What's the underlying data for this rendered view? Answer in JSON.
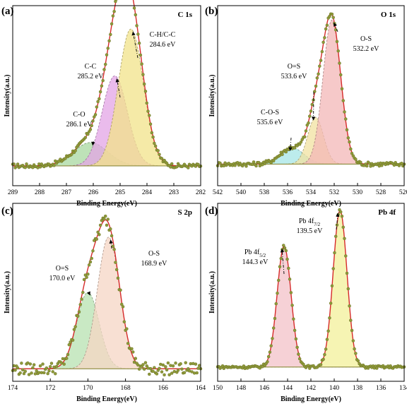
{
  "chart_data": [
    {
      "type": "line",
      "panel": "(a)",
      "title": "C 1s",
      "xlabel": "Binding Energy(eV)",
      "ylabel": "Intensity(a.u.)",
      "xlim": [
        289,
        282
      ],
      "xticks": [
        289,
        288,
        287,
        286,
        285,
        284,
        283,
        282
      ],
      "reversed_x": true,
      "background": 0.11,
      "noise": 0.012,
      "peaks": [
        {
          "name": "C-O",
          "energy": "286.1 eV",
          "center": 286.1,
          "height": 0.13,
          "fwhm": 1.5,
          "color": "#a8d8a0"
        },
        {
          "name": "C-C",
          "energy": "285.2 eV",
          "center": 285.2,
          "height": 0.5,
          "fwhm": 1.1,
          "color": "#e3a4e6"
        },
        {
          "name": "C-H/C-C",
          "energy": "284.6 eV",
          "center": 284.6,
          "height": 0.76,
          "fwhm": 1.1,
          "color": "#f2e38a"
        }
      ]
    },
    {
      "type": "line",
      "panel": "(b)",
      "title": "O 1s",
      "xlabel": "Binding Energy(eV)",
      "ylabel": "Intensity(a.u.)",
      "xlim": [
        542,
        526
      ],
      "xticks": [
        542,
        540,
        538,
        536,
        534,
        532,
        530,
        528,
        526
      ],
      "reversed_x": true,
      "background": 0.12,
      "noise": 0.012,
      "peaks": [
        {
          "name": "C-O-S",
          "energy": "535.6 eV",
          "center": 535.6,
          "height": 0.09,
          "fwhm": 2.4,
          "color": "#a6e6e6"
        },
        {
          "name": "O=S",
          "energy": "533.6 eV",
          "center": 533.6,
          "height": 0.26,
          "fwhm": 1.6,
          "color": "#f2e2a0"
        },
        {
          "name": "O-S",
          "energy": "532.2 eV",
          "center": 532.2,
          "height": 0.8,
          "fwhm": 1.8,
          "color": "#f3b7b7"
        }
      ]
    },
    {
      "type": "line",
      "panel": "(c)",
      "title": "S 2p",
      "xlabel": "Binding Energy(eV)",
      "ylabel": "Intensity(a.u.)",
      "xlim": [
        174,
        164
      ],
      "xticks": [
        174,
        172,
        170,
        168,
        166,
        164
      ],
      "reversed_x": true,
      "background": 0.07,
      "noise": 0.035,
      "peaks": [
        {
          "name": "O=S",
          "energy": "170.0 eV",
          "center": 170.0,
          "height": 0.43,
          "fwhm": 1.4,
          "color": "#b7e2b0"
        },
        {
          "name": "O-S",
          "energy": "168.9 eV",
          "center": 168.9,
          "height": 0.74,
          "fwhm": 1.4,
          "color": "#f6d5c4"
        }
      ]
    },
    {
      "type": "line",
      "panel": "(d)",
      "title": "Pb 4f",
      "xlabel": "Binding Energy(eV)",
      "ylabel": "Intensity(a.u.)",
      "xlim": [
        150,
        134
      ],
      "xticks": [
        150,
        148,
        146,
        144,
        142,
        140,
        138,
        136,
        134
      ],
      "reversed_x": true,
      "background": 0.08,
      "noise": 0.008,
      "peaks": [
        {
          "name": "Pb 4f",
          "subscript": "5/2",
          "energy": "144.3 eV",
          "center": 144.3,
          "height": 0.68,
          "fwhm": 1.4,
          "color": "#f3c1c8"
        },
        {
          "name": "Pb 4f",
          "subscript": "7/2",
          "energy": "139.5 eV",
          "center": 139.5,
          "height": 0.88,
          "fwhm": 1.4,
          "color": "#f3f09a"
        }
      ]
    }
  ]
}
